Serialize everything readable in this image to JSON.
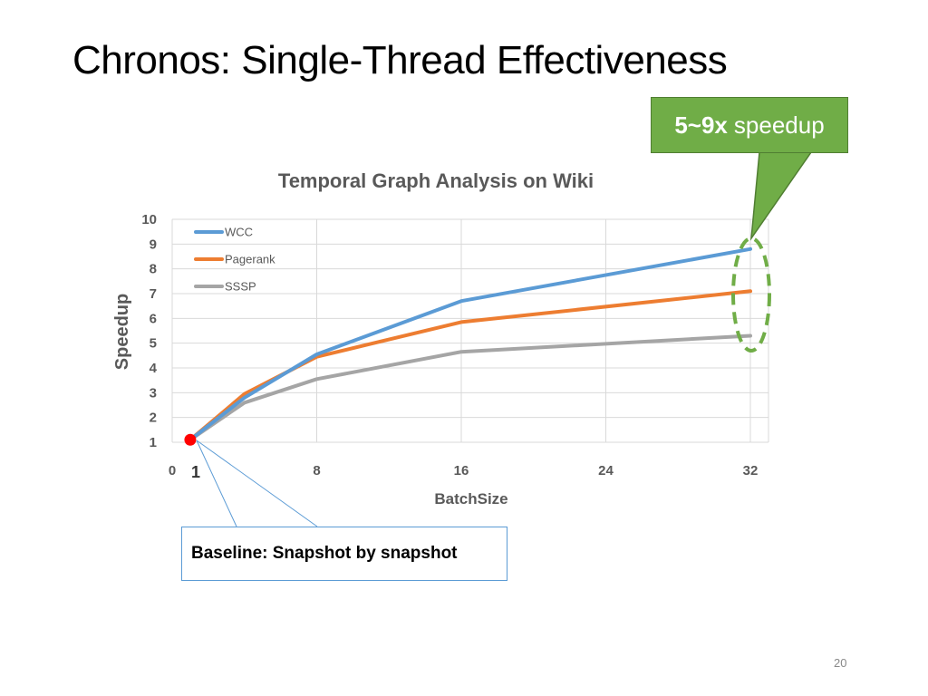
{
  "slide": {
    "title": "Chronos: Single-Thread Effectiveness",
    "callout": {
      "bold": "5~9x",
      "text": "speedup"
    },
    "baseline_note": "Baseline: Snapshot by snapshot",
    "page_number": "20"
  },
  "colors": {
    "WCC": "#5b9bd5",
    "Pagerank": "#ed7d31",
    "SSSP": "#a5a5a5",
    "callout_fill": "#70ad47",
    "ellipse": "#70ad47",
    "baseline_point": "#ff0000",
    "baseline_box_border": "#5b9bd5"
  },
  "chart_data": {
    "type": "line",
    "title": "Temporal Graph Analysis on Wiki",
    "xlabel": "BatchSize",
    "ylabel": "Speedup",
    "xlim": [
      0,
      32
    ],
    "ylim": [
      1,
      10
    ],
    "x_ticks": [
      "0",
      "8",
      "16",
      "24",
      "32"
    ],
    "x_tick_values": [
      0,
      8,
      16,
      24,
      32
    ],
    "y_ticks": [
      "1",
      "2",
      "3",
      "4",
      "5",
      "6",
      "7",
      "8",
      "9",
      "10"
    ],
    "grid": true,
    "legend_position": "top-left",
    "x": [
      1,
      4,
      8,
      16,
      32
    ],
    "series": [
      {
        "name": "WCC",
        "values": [
          1.1,
          2.8,
          4.55,
          6.7,
          8.8
        ]
      },
      {
        "name": "Pagerank",
        "values": [
          1.1,
          2.95,
          4.45,
          5.85,
          7.1
        ]
      },
      {
        "name": "SSSP",
        "values": [
          1.1,
          2.6,
          3.55,
          4.65,
          5.3
        ]
      }
    ],
    "annotations": {
      "baseline_point": {
        "x": 1,
        "y": 1.1,
        "label": "1"
      },
      "highlight_x": 32
    }
  }
}
